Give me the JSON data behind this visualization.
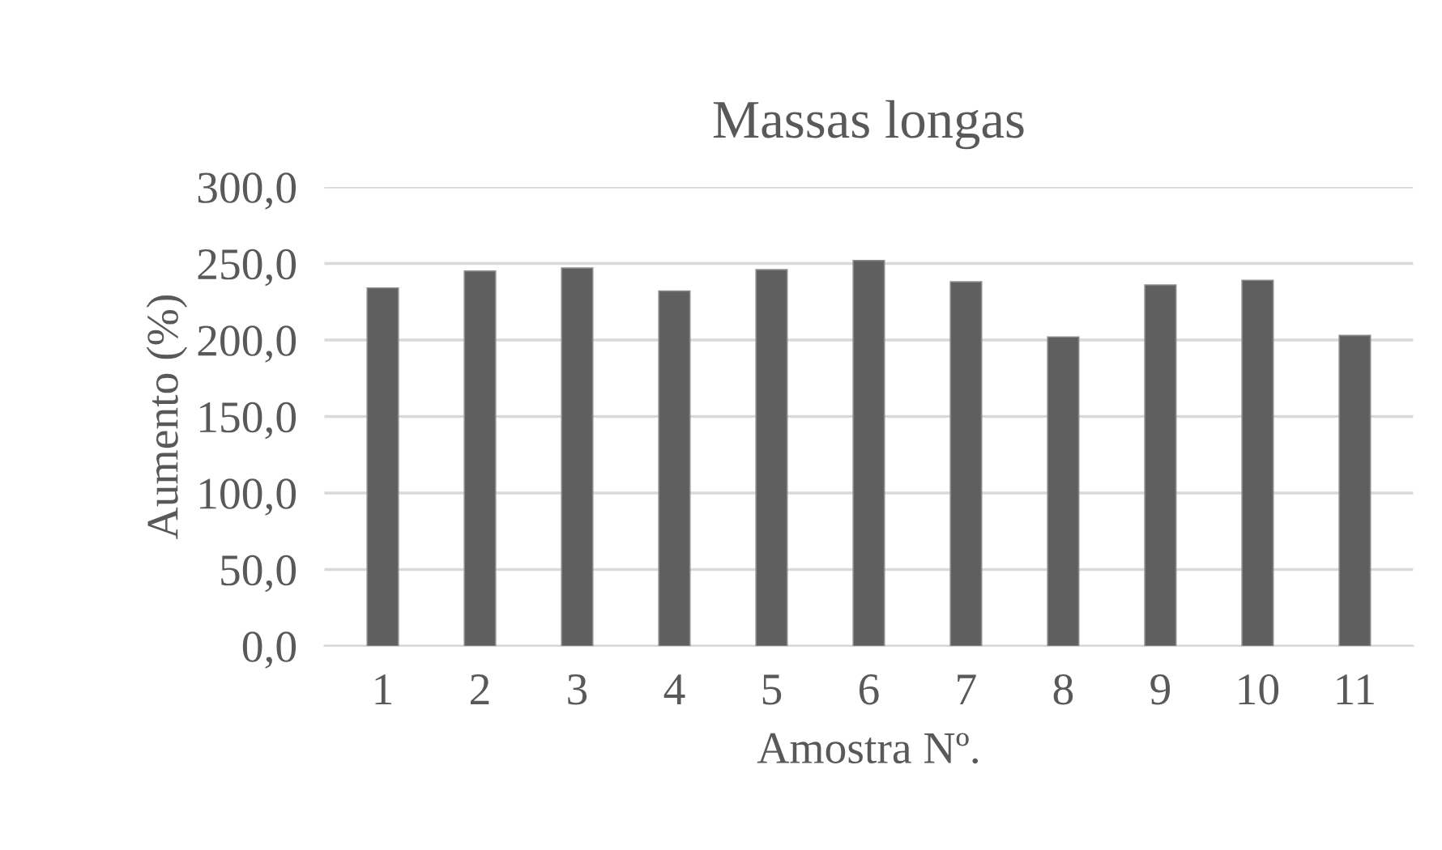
{
  "chart_data": {
    "type": "bar",
    "title": "Massas longas",
    "xlabel": "Amostra Nº.",
    "ylabel": "Aumento (%)",
    "categories": [
      "1",
      "2",
      "3",
      "4",
      "5",
      "6",
      "7",
      "8",
      "9",
      "10",
      "11"
    ],
    "values": [
      234,
      245,
      247,
      232,
      246,
      252,
      238,
      202,
      236,
      239,
      203
    ],
    "color": "#5f5f5f",
    "ylim": [
      0,
      300
    ],
    "yticks": [
      {
        "value": 0,
        "label": "0,0"
      },
      {
        "value": 50,
        "label": "50,0"
      },
      {
        "value": 100,
        "label": "100,0"
      },
      {
        "value": 150,
        "label": "150,0"
      },
      {
        "value": 200,
        "label": "200,0"
      },
      {
        "value": 250,
        "label": "250,0"
      },
      {
        "value": 300,
        "label": "300,0"
      }
    ],
    "grid": "y",
    "legend": false
  }
}
